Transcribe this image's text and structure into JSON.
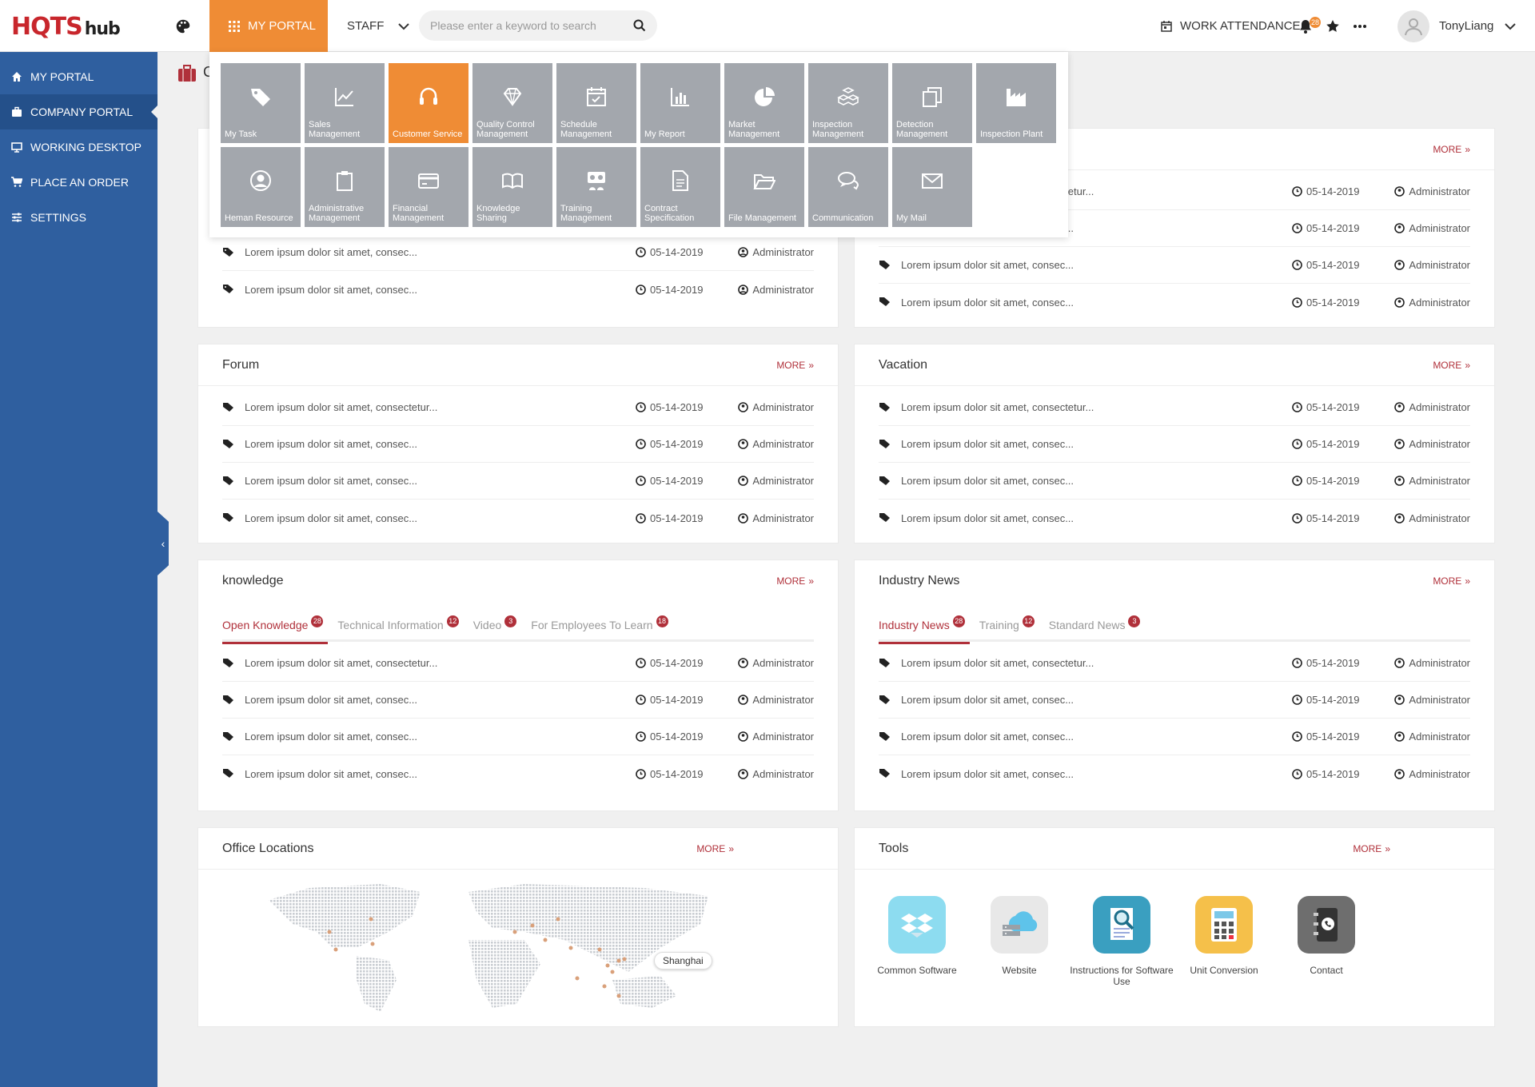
{
  "header": {
    "logo_main": "HQTS",
    "logo_sub": "hub",
    "my_portal": "MY PORTAL",
    "staff": "STAFF",
    "search_placeholder": "Please enter a keyword to search",
    "work_attendance": "WORK ATTENDANCE",
    "notification_count": "28",
    "username": "TonyLiang"
  },
  "sidebar": {
    "items": [
      {
        "label": "MY PORTAL",
        "icon": "home-icon"
      },
      {
        "label": "COMPANY PORTAL",
        "icon": "briefcase-icon"
      },
      {
        "label": "WORKING DESKTOP",
        "icon": "monitor-icon"
      },
      {
        "label": "PLACE AN ORDER",
        "icon": "cart-icon"
      },
      {
        "label": "SETTINGS",
        "icon": "sliders-icon"
      }
    ],
    "active_index": 1
  },
  "breadcrumb": {
    "title": "C"
  },
  "mega_menu": {
    "tiles": [
      {
        "label": "My Task",
        "icon": "tag-icon"
      },
      {
        "label": "Sales Management",
        "icon": "chart-line-icon"
      },
      {
        "label": "Customer Service",
        "icon": "headset-icon",
        "active": true
      },
      {
        "label": "Quality Control Management",
        "icon": "diamond-icon"
      },
      {
        "label": "Schedule Management",
        "icon": "calendar-check-icon"
      },
      {
        "label": "My Report",
        "icon": "bar-chart-icon"
      },
      {
        "label": "Market Management",
        "icon": "pie-chart-icon"
      },
      {
        "label": "Inspection Management",
        "icon": "boxes-icon"
      },
      {
        "label": "Detection Management",
        "icon": "copy-icon"
      },
      {
        "label": "Inspection Plant",
        "icon": "factory-icon"
      },
      {
        "label": "Heman Resource",
        "icon": "user-circle-icon"
      },
      {
        "label": "Administrative Management",
        "icon": "clipboard-icon"
      },
      {
        "label": "Financial Management",
        "icon": "credit-card-icon"
      },
      {
        "label": "Knowledge Sharing",
        "icon": "book-open-icon"
      },
      {
        "label": "Training Management",
        "icon": "training-icon"
      },
      {
        "label": "Contract Specification",
        "icon": "document-icon"
      },
      {
        "label": "File Management",
        "icon": "folder-open-icon"
      },
      {
        "label": "Communication",
        "icon": "chat-icon"
      },
      {
        "label": "My Mail",
        "icon": "mail-icon"
      }
    ]
  },
  "cards": {
    "top_left": {
      "rows": [
        {
          "text": "Lorem ipsum dolor sit amet, consec...",
          "date": "05-14-2019",
          "author": "Administrator"
        },
        {
          "text": "Lorem ipsum dolor sit amet, consec...",
          "date": "05-14-2019",
          "author": "Administrator"
        }
      ]
    },
    "top_right": {
      "more": "MORE",
      "rows": [
        {
          "text": "Lorem ipsum dolor sit amet, consectetur...",
          "date": "05-14-2019",
          "author": "Administrator"
        },
        {
          "text": "Lorem ipsum dolor sit amet, consec...",
          "date": "05-14-2019",
          "author": "Administrator"
        },
        {
          "text": "Lorem ipsum dolor sit amet, consec...",
          "date": "05-14-2019",
          "author": "Administrator"
        },
        {
          "text": "Lorem ipsum dolor sit amet, consec...",
          "date": "05-14-2019",
          "author": "Administrator"
        }
      ]
    },
    "forum": {
      "title": "Forum",
      "more": "MORE",
      "rows": [
        {
          "text": "Lorem ipsum dolor sit amet, consectetur...",
          "date": "05-14-2019",
          "author": "Administrator"
        },
        {
          "text": "Lorem ipsum dolor sit amet, consec...",
          "date": "05-14-2019",
          "author": "Administrator"
        },
        {
          "text": "Lorem ipsum dolor sit amet, consec...",
          "date": "05-14-2019",
          "author": "Administrator"
        },
        {
          "text": "Lorem ipsum dolor sit amet, consec...",
          "date": "05-14-2019",
          "author": "Administrator"
        }
      ]
    },
    "vacation": {
      "title": "Vacation",
      "more": "MORE",
      "rows": [
        {
          "text": "Lorem ipsum dolor sit amet, consectetur...",
          "date": "05-14-2019",
          "author": "Administrator"
        },
        {
          "text": "Lorem ipsum dolor sit amet, consec...",
          "date": "05-14-2019",
          "author": "Administrator"
        },
        {
          "text": "Lorem ipsum dolor sit amet, consec...",
          "date": "05-14-2019",
          "author": "Administrator"
        },
        {
          "text": "Lorem ipsum dolor sit amet, consec...",
          "date": "05-14-2019",
          "author": "Administrator"
        }
      ]
    },
    "knowledge": {
      "title": "knowledge",
      "more": "MORE",
      "tabs": [
        {
          "label": "Open Knowledge",
          "badge": "28"
        },
        {
          "label": "Technical Information",
          "badge": "12"
        },
        {
          "label": "Video",
          "badge": "3"
        },
        {
          "label": "For Employees To Learn",
          "badge": "18"
        }
      ],
      "rows": [
        {
          "text": "Lorem ipsum dolor sit amet, consectetur...",
          "date": "05-14-2019",
          "author": "Administrator"
        },
        {
          "text": "Lorem ipsum dolor sit amet, consec...",
          "date": "05-14-2019",
          "author": "Administrator"
        },
        {
          "text": "Lorem ipsum dolor sit amet, consec...",
          "date": "05-14-2019",
          "author": "Administrator"
        },
        {
          "text": "Lorem ipsum dolor sit amet, consec...",
          "date": "05-14-2019",
          "author": "Administrator"
        }
      ]
    },
    "industry": {
      "title": "Industry News",
      "more": "MORE",
      "tabs": [
        {
          "label": "Industry News",
          "badge": "28"
        },
        {
          "label": "Training",
          "badge": "12"
        },
        {
          "label": "Standard News",
          "badge": "3"
        }
      ],
      "rows": [
        {
          "text": "Lorem ipsum dolor sit amet, consectetur...",
          "date": "05-14-2019",
          "author": "Administrator"
        },
        {
          "text": "Lorem ipsum dolor sit amet, consec...",
          "date": "05-14-2019",
          "author": "Administrator"
        },
        {
          "text": "Lorem ipsum dolor sit amet, consec...",
          "date": "05-14-2019",
          "author": "Administrator"
        },
        {
          "text": "Lorem ipsum dolor sit amet, consec...",
          "date": "05-14-2019",
          "author": "Administrator"
        }
      ]
    },
    "offices": {
      "title": "Office Locations",
      "more": "MORE",
      "highlight_label": "Shanghai"
    },
    "tools": {
      "title": "Tools",
      "more": "MORE",
      "items": [
        {
          "label": "Common Software",
          "icon": "dropbox-icon",
          "color": "#8ddcf0"
        },
        {
          "label": "Website",
          "icon": "cloud-server-icon",
          "color": "#e8e8e8"
        },
        {
          "label": "Instructions for Software Use",
          "icon": "magnifier-doc-icon",
          "color": "#3a9fc0"
        },
        {
          "label": "Unit Conversion",
          "icon": "calculator-icon",
          "color": "#f5c04a"
        },
        {
          "label": "Contact",
          "icon": "phonebook-icon",
          "color": "#6e6e6e"
        }
      ]
    }
  },
  "colors": {
    "accent_orange": "#ef8c35",
    "sidebar_blue": "#2f5f9f",
    "brand_red": "#b0303a"
  }
}
